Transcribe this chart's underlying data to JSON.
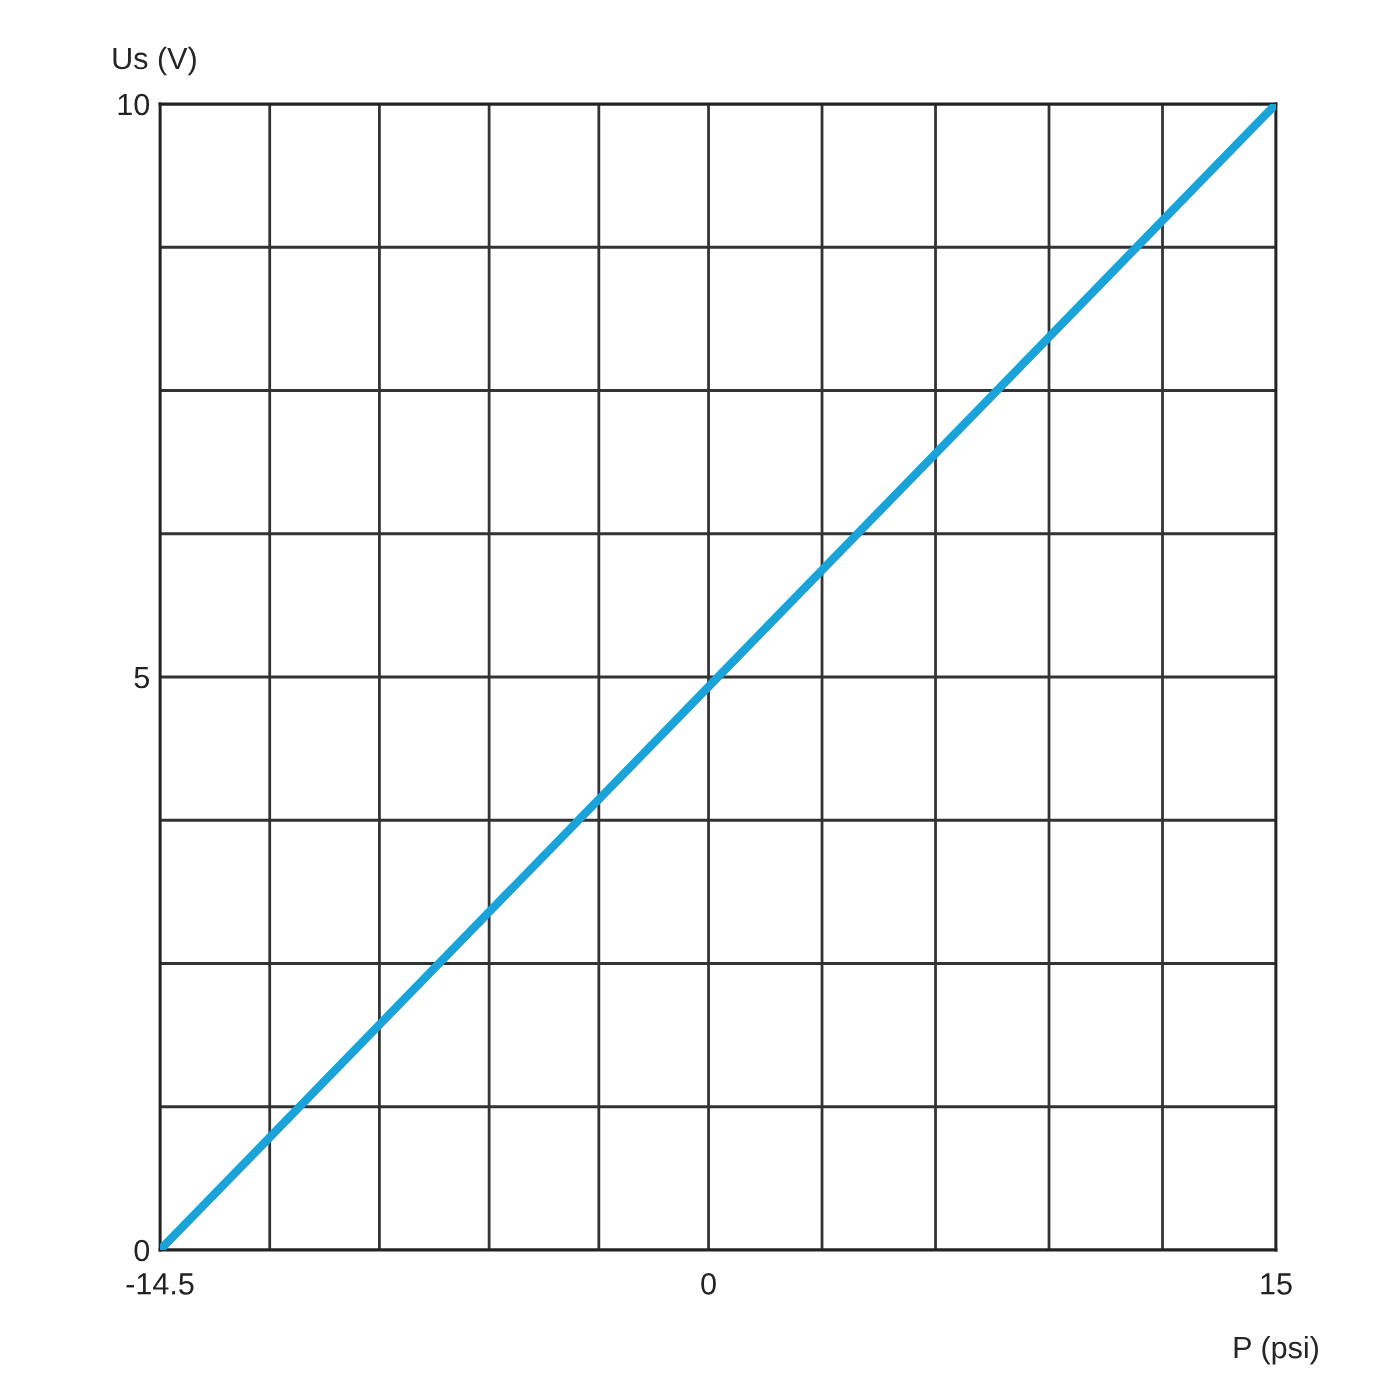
{
  "chart_data": {
    "type": "line",
    "xlabel": "P (psi)",
    "ylabel": "Us (V)",
    "x": [
      -14.5,
      15
    ],
    "series": [
      {
        "color": "#1aa3d9",
        "values": [
          0,
          10
        ]
      }
    ],
    "xlim": [
      -14.5,
      15
    ],
    "ylim": [
      0,
      10
    ],
    "xticks": [
      -14.5,
      {
        "value": -11.6,
        "label": null
      },
      {
        "value": -8.7,
        "label": null
      },
      {
        "value": -5.8,
        "label": null
      },
      {
        "value": -2.9,
        "label": null
      },
      0,
      {
        "value": 3,
        "label": null
      },
      {
        "value": 6,
        "label": null
      },
      {
        "value": 9,
        "label": null
      },
      {
        "value": 12,
        "label": null
      },
      15
    ],
    "yticks": [
      0,
      {
        "value": 1.25,
        "label": null
      },
      {
        "value": 2.5,
        "label": null
      },
      {
        "value": 3.75,
        "label": null
      },
      5,
      {
        "value": 6.25,
        "label": null
      },
      {
        "value": 7.5,
        "label": null
      },
      {
        "value": 8.75,
        "label": null
      },
      10
    ],
    "grid": true,
    "marker": "none",
    "line_style": "solid"
  }
}
